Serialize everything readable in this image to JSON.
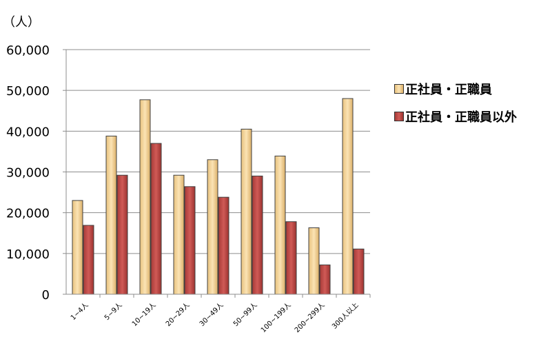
{
  "chart_data": {
    "type": "bar",
    "unit_label": "（人）",
    "categories": [
      "1~4人",
      "5~9人",
      "10~19人",
      "20~29人",
      "30~49人",
      "50~99人",
      "100~199人",
      "200~299人",
      "300人以上"
    ],
    "series": [
      {
        "name": "正社員・正職員",
        "values": [
          23000,
          38800,
          47700,
          29200,
          33000,
          40500,
          33900,
          16300,
          48000
        ],
        "color": "#f2cf8e"
      },
      {
        "name": "正社員・正職員以外",
        "values": [
          16900,
          29200,
          37000,
          26400,
          23800,
          29000,
          17800,
          7200,
          11100
        ],
        "color": "#c0504d"
      }
    ],
    "ylim": [
      0,
      60000
    ],
    "yticks": [
      "0",
      "10,000",
      "20,000",
      "30,000",
      "40,000",
      "50,000",
      "60,000"
    ],
    "grid": true,
    "legend_position": "right"
  }
}
